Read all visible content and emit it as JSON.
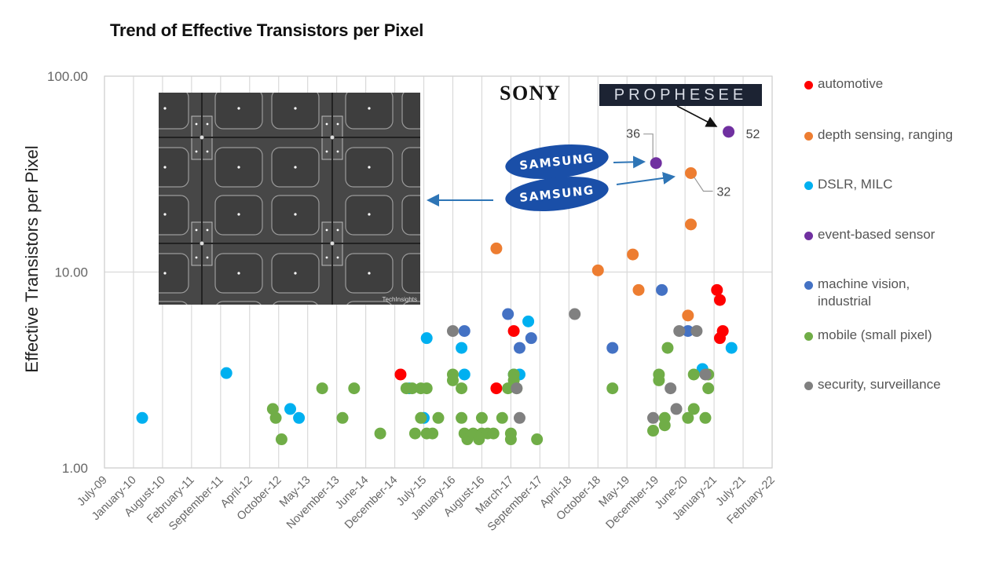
{
  "chart_data": {
    "type": "scatter",
    "title": "Trend of Effective Transistors per Pixel",
    "xlabel": "",
    "ylabel": "Effective Transistors per Pixel",
    "yscale": "log",
    "ylim": [
      1,
      100
    ],
    "yticks": [
      "1.00",
      "10.00",
      "100.00"
    ],
    "grid": true,
    "legend_position": "right",
    "x_tick_labels": [
      "July-09",
      "January-10",
      "August-10",
      "February-11",
      "September-11",
      "April-12",
      "October-12",
      "May-13",
      "November-13",
      "June-14",
      "December-14",
      "July-15",
      "January-16",
      "August-16",
      "March-17",
      "September-17",
      "April-18",
      "October-18",
      "May-19",
      "December-19",
      "June-20",
      "January-21",
      "July-21",
      "February-22"
    ],
    "x_unit_note": "x values are expressed as fractional tick index (0 = July-09, 23 = February-22)",
    "xlim": [
      0,
      23
    ],
    "series": [
      {
        "name": "automotive",
        "color": "#FF0000",
        "points": [
          [
            10.2,
            3.0
          ],
          [
            13.5,
            2.55
          ],
          [
            14.1,
            5.0
          ],
          [
            21.1,
            8.1
          ],
          [
            21.2,
            7.2
          ],
          [
            21.3,
            5.0
          ],
          [
            21.2,
            4.6
          ]
        ]
      },
      {
        "name": "depth sensing, ranging",
        "color": "#ED7D31",
        "points": [
          [
            13.5,
            13.2
          ],
          [
            17.0,
            10.2
          ],
          [
            18.2,
            12.3
          ],
          [
            18.4,
            8.1
          ],
          [
            20.2,
            32
          ],
          [
            20.2,
            17.5
          ],
          [
            20.1,
            6.0
          ]
        ]
      },
      {
        "name": "DSLR, MILC",
        "color": "#00B0F0",
        "points": [
          [
            1.3,
            1.8
          ],
          [
            4.2,
            3.05
          ],
          [
            6.4,
            2.0
          ],
          [
            6.7,
            1.8
          ],
          [
            11.1,
            4.6
          ],
          [
            10.5,
            2.55
          ],
          [
            11.0,
            1.8
          ],
          [
            12.3,
            4.1
          ],
          [
            12.4,
            3.0
          ],
          [
            14.1,
            3.0
          ],
          [
            14.3,
            3.0
          ],
          [
            14.6,
            5.6
          ],
          [
            20.6,
            3.2
          ],
          [
            21.6,
            4.1
          ]
        ]
      },
      {
        "name": "event-based sensor",
        "color": "#7030A0",
        "points": [
          [
            19.0,
            36
          ],
          [
            21.5,
            52
          ]
        ]
      },
      {
        "name": "machine vision, industrial",
        "color": "#4472C4",
        "points": [
          [
            12.4,
            5.0
          ],
          [
            13.9,
            6.1
          ],
          [
            14.3,
            4.1
          ],
          [
            14.7,
            4.6
          ],
          [
            17.5,
            4.1
          ],
          [
            19.2,
            8.1
          ],
          [
            20.1,
            5.0
          ]
        ]
      },
      {
        "name": "mobile (small pixel)",
        "color": "#70AD47",
        "points": [
          [
            5.8,
            2.0
          ],
          [
            5.9,
            1.8
          ],
          [
            6.1,
            1.4
          ],
          [
            7.5,
            2.55
          ],
          [
            8.2,
            1.8
          ],
          [
            8.6,
            2.55
          ],
          [
            9.5,
            1.5
          ],
          [
            10.4,
            2.55
          ],
          [
            10.6,
            2.55
          ],
          [
            10.7,
            1.5
          ],
          [
            10.9,
            2.55
          ],
          [
            11.1,
            2.55
          ],
          [
            10.9,
            1.8
          ],
          [
            11.1,
            1.5
          ],
          [
            11.3,
            1.5
          ],
          [
            11.5,
            1.8
          ],
          [
            12.0,
            3.0
          ],
          [
            12.0,
            2.8
          ],
          [
            12.3,
            2.55
          ],
          [
            12.3,
            1.8
          ],
          [
            12.4,
            1.5
          ],
          [
            12.5,
            1.4
          ],
          [
            12.7,
            1.5
          ],
          [
            12.9,
            1.4
          ],
          [
            13.0,
            1.5
          ],
          [
            13.0,
            1.8
          ],
          [
            13.2,
            1.5
          ],
          [
            13.4,
            1.5
          ],
          [
            13.7,
            1.8
          ],
          [
            13.9,
            2.55
          ],
          [
            14.0,
            1.5
          ],
          [
            14.0,
            1.4
          ],
          [
            14.1,
            3.0
          ],
          [
            14.1,
            2.8
          ],
          [
            14.2,
            2.55
          ],
          [
            14.9,
            1.4
          ],
          [
            17.5,
            2.55
          ],
          [
            18.9,
            1.55
          ],
          [
            19.1,
            3.0
          ],
          [
            19.1,
            2.8
          ],
          [
            19.3,
            1.8
          ],
          [
            19.3,
            1.65
          ],
          [
            19.4,
            4.1
          ],
          [
            20.1,
            1.8
          ],
          [
            20.3,
            3.0
          ],
          [
            20.3,
            2.0
          ],
          [
            20.8,
            3.0
          ],
          [
            20.8,
            2.55
          ],
          [
            20.7,
            1.8
          ]
        ]
      },
      {
        "name": "security, surveillance",
        "color": "#808080",
        "points": [
          [
            12.0,
            5.0
          ],
          [
            14.2,
            2.55
          ],
          [
            14.3,
            1.8
          ],
          [
            16.2,
            6.1
          ],
          [
            18.9,
            1.8
          ],
          [
            19.5,
            2.55
          ],
          [
            19.7,
            2.0
          ],
          [
            19.8,
            5.0
          ],
          [
            20.4,
            5.0
          ],
          [
            20.7,
            3.0
          ]
        ]
      }
    ],
    "annotations": [
      {
        "text": "36",
        "target_series": "event-based sensor",
        "target_value": 36
      },
      {
        "text": "52",
        "target_series": "event-based sensor",
        "target_value": 52
      },
      {
        "text": "32",
        "target_series": "depth sensing, ranging",
        "target_value": 32
      }
    ]
  },
  "overlays": {
    "sony_logo": "SONY",
    "prophesee_logo": "PROPHESEE",
    "samsung_logo_1": "SAMSUNG",
    "samsung_logo_2": "SAMSUNG",
    "inset_caption": "TechInsights"
  },
  "legend": [
    {
      "label": "automotive",
      "color": "#FF0000"
    },
    {
      "label": "depth sensing, ranging",
      "color": "#ED7D31"
    },
    {
      "label": "DSLR, MILC",
      "color": "#00B0F0"
    },
    {
      "label": "event-based sensor",
      "color": "#7030A0"
    },
    {
      "label": "machine vision,",
      "label2": "industrial",
      "color": "#4472C4"
    },
    {
      "label": "mobile (small pixel)",
      "color": "#70AD47"
    },
    {
      "label": "security, surveillance",
      "color": "#808080"
    }
  ]
}
